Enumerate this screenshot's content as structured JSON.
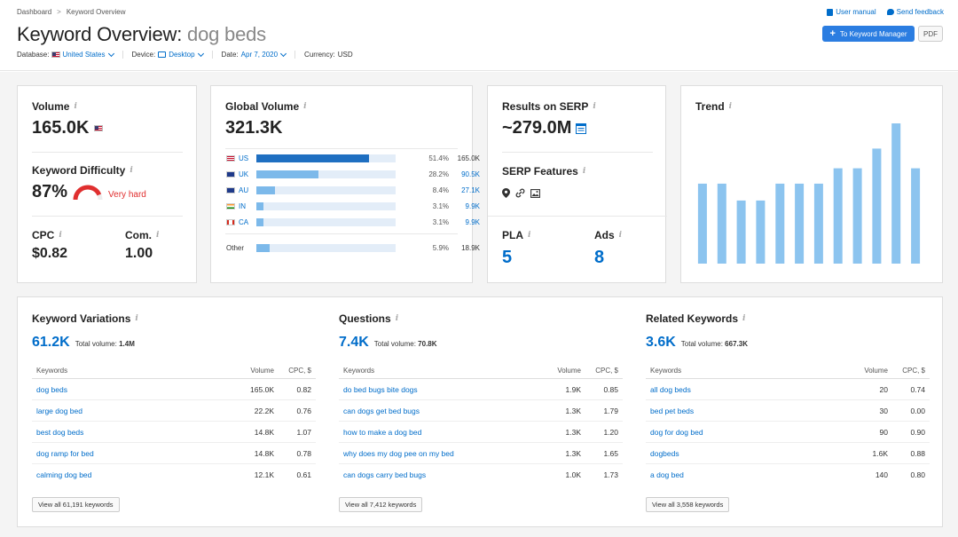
{
  "breadcrumb": [
    "Dashboard",
    "Keyword Overview"
  ],
  "title": {
    "prefix": "Keyword Overview:",
    "keyword": "dog beds"
  },
  "meta": {
    "database_label": "Database:",
    "database_value": "United States",
    "device_label": "Device:",
    "device_value": "Desktop",
    "date_label": "Date:",
    "date_value": "Apr 7, 2020",
    "currency_label": "Currency:",
    "currency_value": "USD"
  },
  "top_links": {
    "manual": "User manual",
    "feedback": "Send feedback"
  },
  "buttons": {
    "keyword_manager": "To Keyword Manager",
    "pdf": "PDF"
  },
  "volume_card": {
    "title": "Volume",
    "value": "165.0K",
    "kd_title": "Keyword Difficulty",
    "kd_value": "87%",
    "kd_label": "Very hard",
    "kd_percent": 87,
    "cpc_title": "CPC",
    "cpc_value": "$0.82",
    "com_title": "Com.",
    "com_value": "1.00"
  },
  "global_card": {
    "title": "Global Volume",
    "value": "321.3K",
    "countries": [
      {
        "code": "US",
        "pct": "51.4%",
        "val": "165.0K",
        "share": 51.4
      },
      {
        "code": "UK",
        "pct": "28.2%",
        "val": "90.5K",
        "share": 28.2
      },
      {
        "code": "AU",
        "pct": "8.4%",
        "val": "27.1K",
        "share": 8.4
      },
      {
        "code": "IN",
        "pct": "3.1%",
        "val": "9.9K",
        "share": 3.1
      },
      {
        "code": "CA",
        "pct": "3.1%",
        "val": "9.9K",
        "share": 3.1
      }
    ],
    "other": {
      "code": "Other",
      "pct": "5.9%",
      "val": "18.9K",
      "share": 5.9
    }
  },
  "serp_card": {
    "title": "Results on SERP",
    "value": "~279.0M",
    "features_title": "SERP Features",
    "pla_title": "PLA",
    "pla_value": "5",
    "ads_title": "Ads",
    "ads_value": "8"
  },
  "trend_card": {
    "title": "Trend",
    "values": [
      0.57,
      0.57,
      0.45,
      0.45,
      0.57,
      0.57,
      0.57,
      0.68,
      0.68,
      0.82,
      1.0,
      0.68
    ]
  },
  "sections": [
    {
      "title": "Keyword Variations",
      "count": "61.2K",
      "tv_label": "Total volume:",
      "tv_value": "1.4M",
      "headers": [
        "Keywords",
        "Volume",
        "CPC, $"
      ],
      "rows": [
        [
          "dog beds",
          "165.0K",
          "0.82"
        ],
        [
          "large dog bed",
          "22.2K",
          "0.76"
        ],
        [
          "best dog beds",
          "14.8K",
          "1.07"
        ],
        [
          "dog ramp for bed",
          "14.8K",
          "0.78"
        ],
        [
          "calming dog bed",
          "12.1K",
          "0.61"
        ]
      ],
      "view_all": "View all 61,191 keywords"
    },
    {
      "title": "Questions",
      "count": "7.4K",
      "tv_label": "Total volume:",
      "tv_value": "70.8K",
      "headers": [
        "Keywords",
        "Volume",
        "CPC, $"
      ],
      "rows": [
        [
          "do bed bugs bite dogs",
          "1.9K",
          "0.85"
        ],
        [
          "can dogs get bed bugs",
          "1.3K",
          "1.79"
        ],
        [
          "how to make a dog bed",
          "1.3K",
          "1.20"
        ],
        [
          "why does my dog pee on my bed",
          "1.3K",
          "1.65"
        ],
        [
          "can dogs carry bed bugs",
          "1.0K",
          "1.73"
        ]
      ],
      "view_all": "View all 7,412 keywords"
    },
    {
      "title": "Related Keywords",
      "count": "3.6K",
      "tv_label": "Total volume:",
      "tv_value": "667.3K",
      "headers": [
        "Keywords",
        "Volume",
        "CPC, $"
      ],
      "rows": [
        [
          "all dog beds",
          "20",
          "0.74"
        ],
        [
          "bed pet beds",
          "30",
          "0.00"
        ],
        [
          "dog for dog bed",
          "90",
          "0.90"
        ],
        [
          "dogbeds",
          "1.6K",
          "0.88"
        ],
        [
          "a dog bed",
          "140",
          "0.80"
        ]
      ],
      "view_all": "View all 3,558 keywords"
    }
  ],
  "colors": {
    "accent": "#006dca",
    "bar_primary": "#1f6fc1",
    "bar_light": "#7cb9ea",
    "trend_bar": "#8cc4ef",
    "danger": "#e02f2f"
  }
}
